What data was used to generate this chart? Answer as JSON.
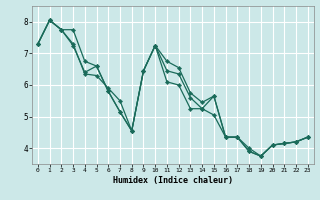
{
  "xlabel": "Humidex (Indice chaleur)",
  "bg_color": "#cce8e8",
  "grid_color": "#ffffff",
  "line_color": "#1a6b5a",
  "xlim": [
    -0.5,
    23.5
  ],
  "ylim": [
    3.5,
    8.5
  ],
  "yticks": [
    4,
    5,
    6,
    7,
    8
  ],
  "xticks": [
    0,
    1,
    2,
    3,
    4,
    5,
    6,
    7,
    8,
    9,
    10,
    11,
    12,
    13,
    14,
    15,
    16,
    17,
    18,
    19,
    20,
    21,
    22,
    23
  ],
  "series": [
    [
      7.3,
      8.05,
      7.75,
      7.25,
      6.4,
      6.6,
      5.8,
      5.15,
      4.55,
      6.45,
      7.25,
      6.1,
      6.0,
      5.25,
      5.25,
      5.65,
      4.35,
      4.35,
      3.9,
      3.75,
      4.1,
      4.15,
      4.2,
      4.35
    ],
    [
      7.3,
      8.05,
      7.75,
      7.75,
      6.75,
      6.6,
      5.8,
      5.15,
      4.55,
      6.45,
      7.25,
      6.75,
      6.55,
      5.75,
      5.45,
      5.65,
      4.35,
      4.35,
      3.9,
      3.75,
      4.1,
      4.15,
      4.2,
      4.35
    ],
    [
      7.3,
      8.05,
      7.75,
      7.3,
      6.35,
      6.3,
      5.9,
      5.5,
      4.55,
      6.45,
      7.25,
      6.45,
      6.35,
      5.6,
      5.25,
      5.05,
      4.35,
      4.35,
      4.0,
      3.75,
      4.1,
      4.15,
      4.2,
      4.35
    ]
  ]
}
